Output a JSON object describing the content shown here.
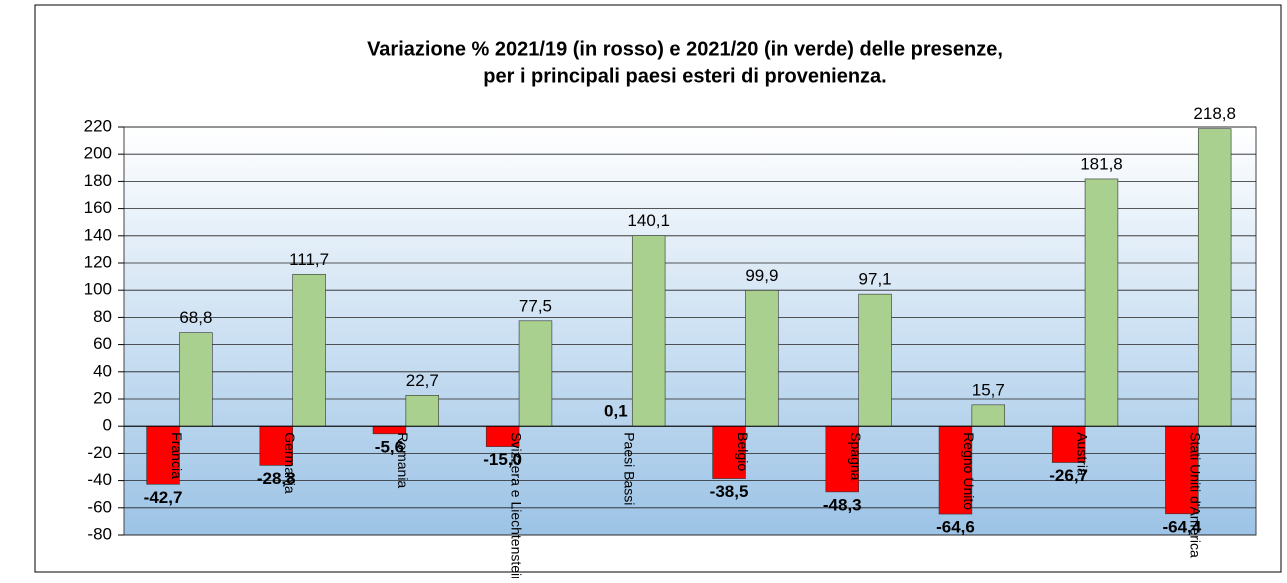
{
  "chart_data": {
    "type": "bar",
    "title": [
      "Variazione % 2021/19 (in rosso) e 2021/20 (in verde) delle presenze,",
      "per i principali paesi esteri di provenienza."
    ],
    "categories": [
      "Francia",
      "Germania",
      "Romania",
      "Svizzera e Liechtenstein",
      "Paesi Bassi",
      "Belgio",
      "Spagna",
      "Regno Unito",
      "Austria",
      "Stati Uniti d'America"
    ],
    "series": [
      {
        "color": "#ff0000",
        "values": [
          -42.7,
          -28.8,
          -5.6,
          -15.0,
          0.1,
          -38.5,
          -48.3,
          -64.6,
          -26.7,
          -64.4
        ],
        "value_labels": [
          "-42,7",
          "-28,8",
          "-5,6",
          "-15,0",
          "0,1",
          "-38,5",
          "-48,3",
          "-64,6",
          "-26,7",
          "-64,4"
        ]
      },
      {
        "color": "#a9d08e",
        "values": [
          68.8,
          111.7,
          22.7,
          77.5,
          140.1,
          99.9,
          97.1,
          15.7,
          181.8,
          218.8
        ],
        "value_labels": [
          "68,8",
          "111,7",
          "22,7",
          "77,5",
          "140,1",
          "99,9",
          "97,1",
          "15,7",
          "181,8",
          "218,8"
        ]
      }
    ],
    "ylim": [
      -80,
      220
    ],
    "yticks": [
      -80,
      -60,
      -40,
      -20,
      0,
      20,
      40,
      60,
      80,
      100,
      120,
      140,
      160,
      180,
      200,
      220
    ],
    "grid": true
  }
}
